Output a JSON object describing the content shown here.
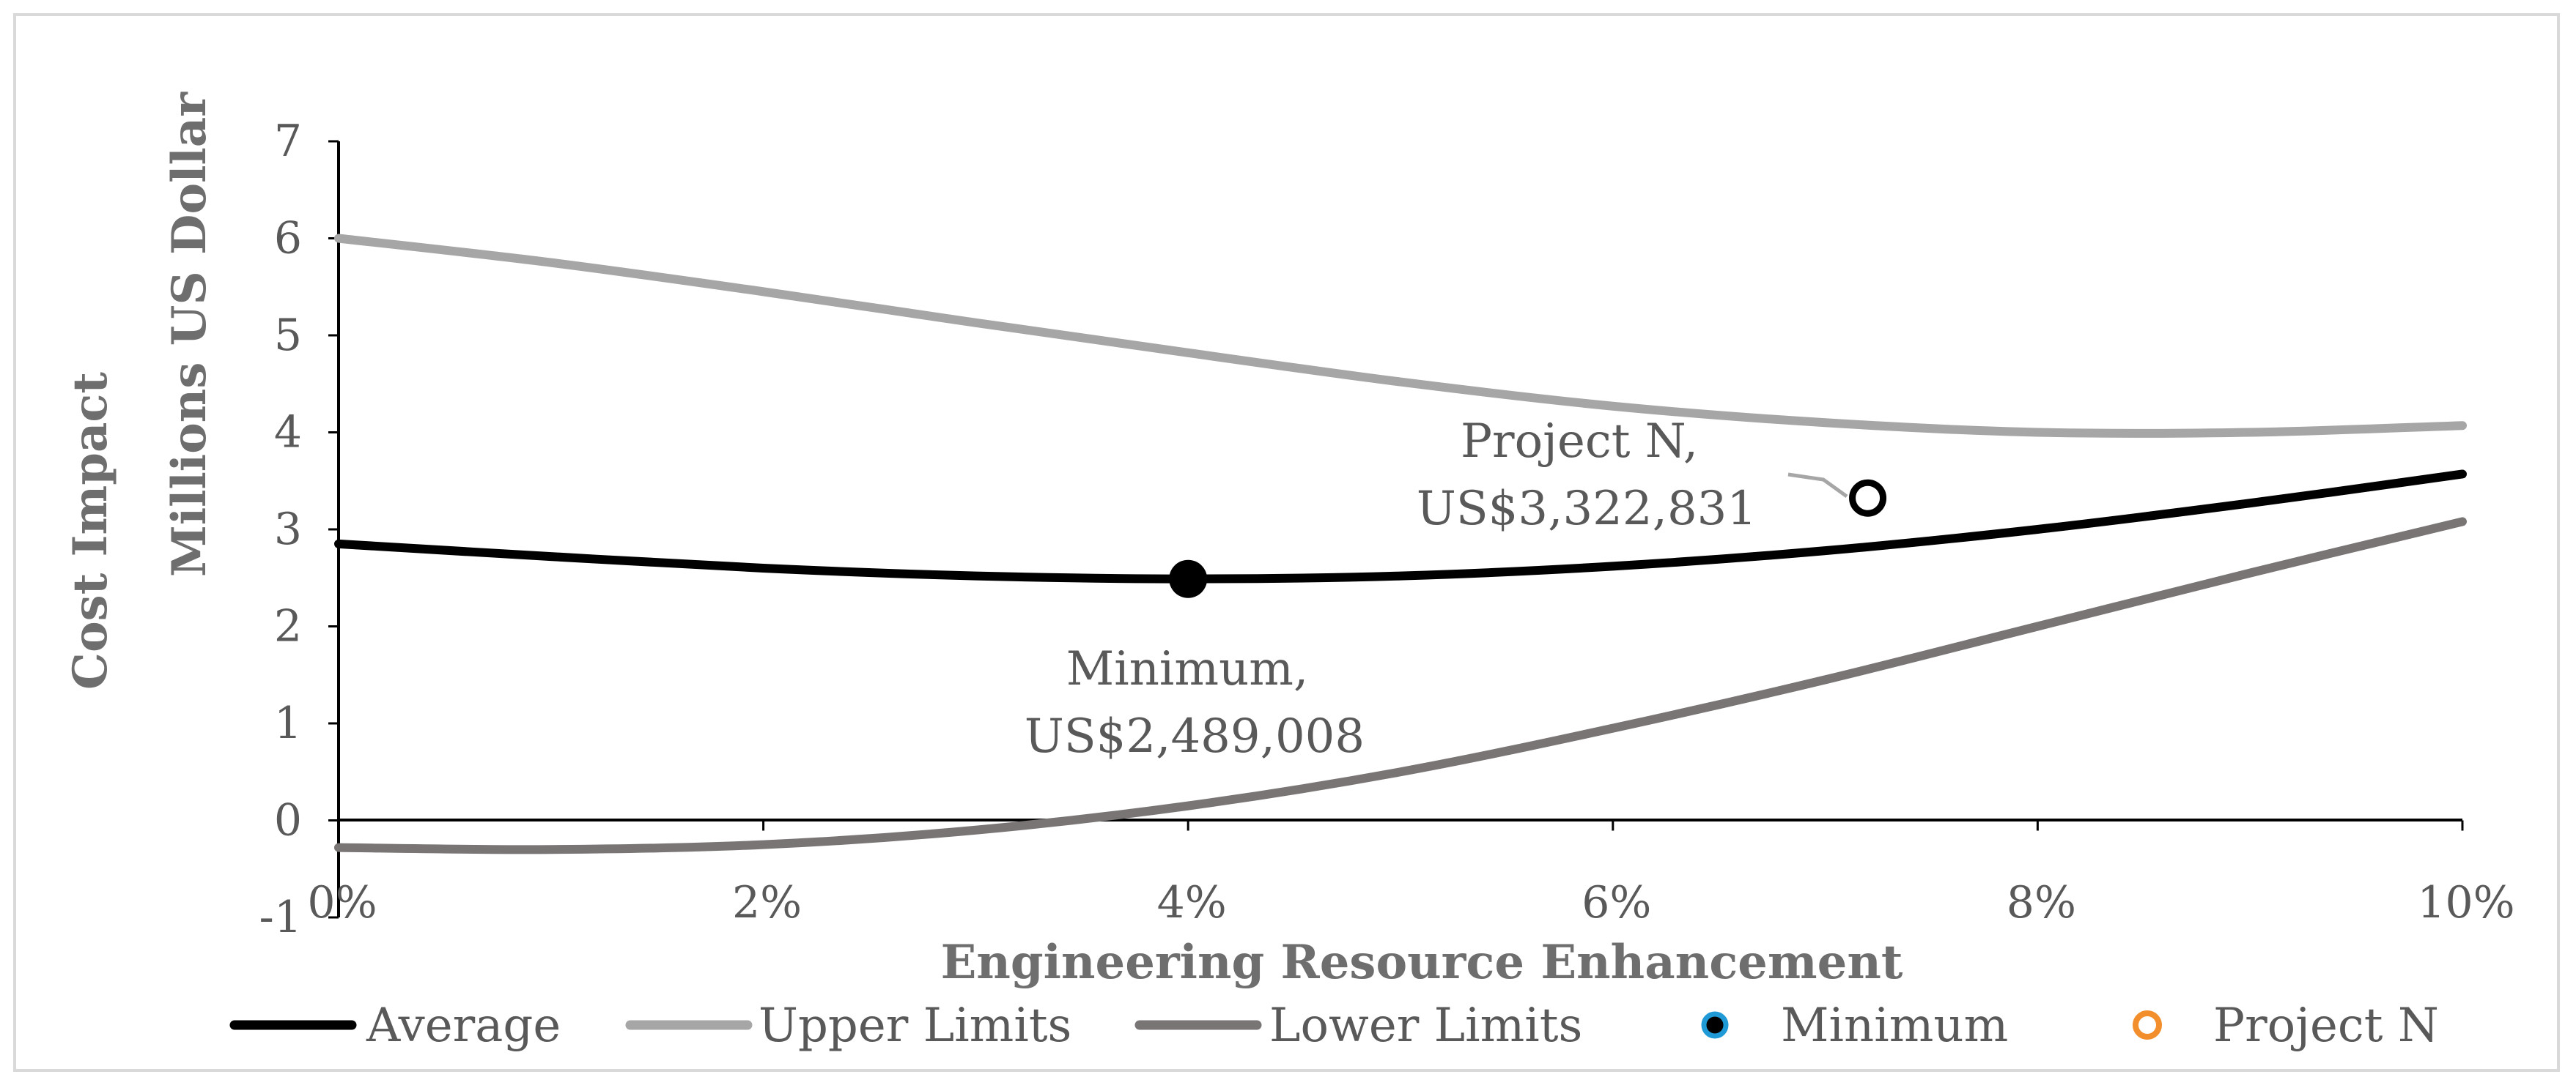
{
  "chart_data": {
    "type": "line",
    "xlabel": "Engineering Resource Enhancement",
    "ylabel_line1": "Cost Impact",
    "ylabel_line2": "Millions US Dollar",
    "x_ticks": [
      "0%",
      "2%",
      "4%",
      "6%",
      "8%",
      "10%"
    ],
    "y_ticks": [
      "-1",
      "0",
      "1",
      "2",
      "3",
      "4",
      "5",
      "6",
      "7"
    ],
    "xlim": [
      0,
      10
    ],
    "ylim": [
      -1,
      7
    ],
    "series": [
      {
        "name": "Average",
        "color": "#000000",
        "x": [
          0,
          1,
          2,
          3,
          4,
          5,
          6,
          7,
          8,
          9,
          10
        ],
        "values": [
          2.85,
          2.72,
          2.6,
          2.52,
          2.49,
          2.52,
          2.62,
          2.78,
          3.0,
          3.27,
          3.57
        ]
      },
      {
        "name": "Upper Limits",
        "color": "#a6a6a6",
        "x": [
          0,
          1,
          2,
          3,
          4,
          5,
          6,
          7,
          8,
          9,
          10
        ],
        "values": [
          6.0,
          5.75,
          5.45,
          5.13,
          4.82,
          4.52,
          4.27,
          4.1,
          4.0,
          4.0,
          4.07
        ]
      },
      {
        "name": "Lower Limits",
        "color": "#7a7575",
        "x": [
          0,
          1,
          2,
          3,
          4,
          5,
          6,
          7,
          8,
          9,
          10
        ],
        "values": [
          -0.28,
          -0.3,
          -0.25,
          -0.1,
          0.15,
          0.5,
          0.95,
          1.45,
          2.0,
          2.55,
          3.08
        ]
      }
    ],
    "points": [
      {
        "name": "Minimum",
        "x": 4.0,
        "y": 2.489,
        "label_line1": "Minimum,",
        "label_line2": "US$2,489,008",
        "legend_color": "#1f9ad6"
      },
      {
        "name": "Project N",
        "x": 7.2,
        "y": 3.323,
        "label_line1": "Project N,",
        "label_line2": "US$3,322,831",
        "legend_color": "#f28e2b"
      }
    ],
    "legend": [
      "Average",
      "Upper Limits",
      "Lower Limits",
      "Minimum",
      "Project N"
    ]
  }
}
